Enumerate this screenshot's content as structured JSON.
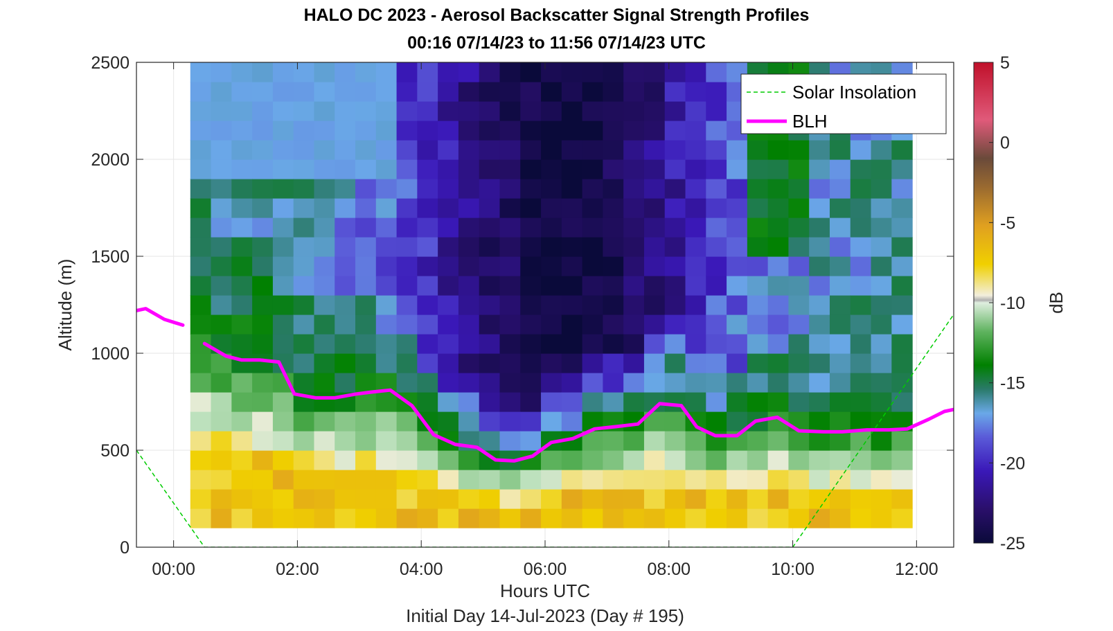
{
  "chart_data": {
    "type": "heatmap",
    "title": "HALO DC 2023 - Aerosol Backscatter Signal Strength Profiles",
    "subtitle": "00:16 07/14/23 to 11:56 07/14/23  UTC",
    "xlabel": "Hours UTC",
    "xlabel2": "Initial Day 14-Jul-2023 (Day # 195)",
    "ylabel": "Altitude (m)",
    "colorbar_label": "dB",
    "xlim_hours": [
      -0.6,
      12.6
    ],
    "ylim": [
      0,
      2500
    ],
    "x_ticks": [
      {
        "v": 0,
        "label": "00:00"
      },
      {
        "v": 2,
        "label": "02:00"
      },
      {
        "v": 4,
        "label": "04:00"
      },
      {
        "v": 6,
        "label": "06:00"
      },
      {
        "v": 8,
        "label": "08:00"
      },
      {
        "v": 10,
        "label": "10:00"
      },
      {
        "v": 12,
        "label": "12:00"
      }
    ],
    "y_ticks": [
      {
        "v": 0,
        "label": "0"
      },
      {
        "v": 500,
        "label": "500"
      },
      {
        "v": 1000,
        "label": "1000"
      },
      {
        "v": 1500,
        "label": "1500"
      },
      {
        "v": 2000,
        "label": "2000"
      },
      {
        "v": 2500,
        "label": "2500"
      }
    ],
    "colorbar_ticks": [
      {
        "v": 5,
        "label": "5"
      },
      {
        "v": 0,
        "label": "0"
      },
      {
        "v": -5,
        "label": "-5"
      },
      {
        "v": -10,
        "label": "-10"
      },
      {
        "v": -15,
        "label": "-15"
      },
      {
        "v": -20,
        "label": "-20"
      },
      {
        "v": -25,
        "label": "-25"
      }
    ],
    "colorbar_range": [
      -25,
      5
    ],
    "grid": true,
    "legend": {
      "position": "top-right",
      "entries": [
        "Solar Insolation",
        "BLH"
      ]
    },
    "heatmap": {
      "start_hour": 0.27,
      "end_hour": 11.93,
      "columns": 35,
      "altitude_start_m": 100,
      "altitude_end_m": 2500,
      "rows": 24
    },
    "blh_series": {
      "name": "BLH",
      "color": "#ff00ff",
      "segments": [
        [
          [
            -0.6,
            1220
          ],
          [
            -0.45,
            1230
          ],
          [
            -0.15,
            1175
          ],
          [
            0.15,
            1145
          ]
        ],
        [
          [
            0.5,
            1050
          ],
          [
            0.85,
            985
          ],
          [
            1.1,
            965
          ],
          [
            1.4,
            965
          ],
          [
            1.7,
            955
          ],
          [
            1.95,
            790
          ],
          [
            2.3,
            770
          ],
          [
            2.6,
            770
          ],
          [
            2.95,
            790
          ],
          [
            3.2,
            800
          ],
          [
            3.5,
            810
          ],
          [
            3.85,
            730
          ],
          [
            4.2,
            580
          ],
          [
            4.55,
            530
          ],
          [
            4.9,
            515
          ],
          [
            5.2,
            450
          ],
          [
            5.5,
            445
          ],
          [
            5.8,
            470
          ],
          [
            6.1,
            540
          ],
          [
            6.45,
            560
          ],
          [
            6.8,
            610
          ],
          [
            7.1,
            620
          ],
          [
            7.5,
            635
          ],
          [
            7.85,
            740
          ],
          [
            8.2,
            730
          ],
          [
            8.45,
            620
          ],
          [
            8.75,
            575
          ],
          [
            9.1,
            575
          ],
          [
            9.4,
            650
          ],
          [
            9.75,
            670
          ],
          [
            10.1,
            600
          ],
          [
            10.5,
            595
          ],
          [
            10.8,
            595
          ],
          [
            11.2,
            605
          ],
          [
            11.55,
            605
          ],
          [
            11.85,
            610
          ],
          [
            12.2,
            660
          ],
          [
            12.45,
            700
          ],
          [
            12.6,
            710
          ]
        ]
      ]
    },
    "solar_insolation_series": {
      "name": "Solar Insolation",
      "color": "#00cc00",
      "points": [
        [
          -0.6,
          500
        ],
        [
          0.5,
          0
        ],
        [
          10.0,
          0
        ],
        [
          12.6,
          1200
        ]
      ]
    }
  }
}
